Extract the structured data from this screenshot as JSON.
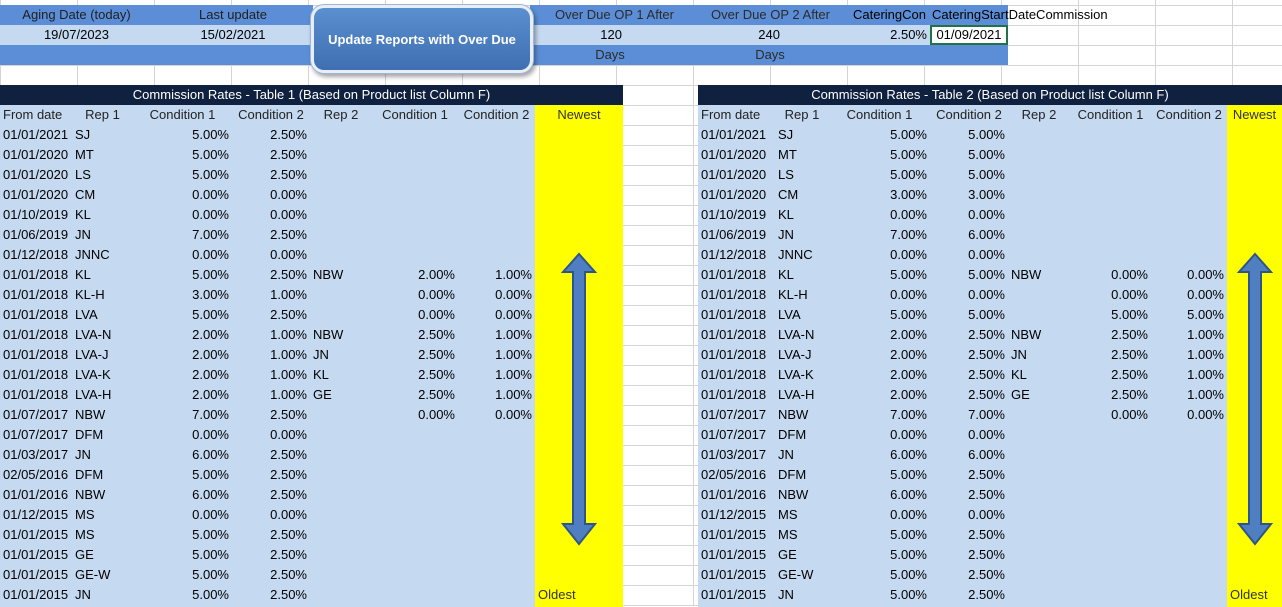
{
  "top": {
    "aging_label": "Aging Date (today)",
    "aging_value": "19/07/2023",
    "last_update_label": "Last update",
    "last_update_value": "15/02/2021",
    "button_label": "Update Reports with Over Due",
    "op1_label": "Over Due OP 1 After",
    "op1_value": "120",
    "op1_unit": "Days",
    "op2_label": "Over Due OP 2 After",
    "op2_value": "240",
    "op2_unit": "Days",
    "catering_con_label": "CateringCon",
    "catering_con_value": "2.50%",
    "catering_start_label": "CateringStartDateCommission",
    "catering_start_value": "01/09/2021"
  },
  "table1": {
    "title": "Commission Rates - Table 1 (Based on Product list Column F)",
    "headers": [
      "From date",
      "Rep 1",
      "Condition 1",
      "Condition 2",
      "Rep 2",
      "Condition 1",
      "Condition 2"
    ],
    "newest": "Newest",
    "oldest": "Oldest",
    "rows": [
      [
        "01/01/2021",
        "SJ",
        "5.00%",
        "2.50%",
        "",
        "",
        ""
      ],
      [
        "01/01/2020",
        "MT",
        "5.00%",
        "2.50%",
        "",
        "",
        ""
      ],
      [
        "01/01/2020",
        "LS",
        "5.00%",
        "2.50%",
        "",
        "",
        ""
      ],
      [
        "01/01/2020",
        "CM",
        "0.00%",
        "0.00%",
        "",
        "",
        ""
      ],
      [
        "01/10/2019",
        "KL",
        "0.00%",
        "0.00%",
        "",
        "",
        ""
      ],
      [
        "01/06/2019",
        "JN",
        "7.00%",
        "2.50%",
        "",
        "",
        ""
      ],
      [
        "01/12/2018",
        "JNNC",
        "0.00%",
        "0.00%",
        "",
        "",
        ""
      ],
      [
        "01/01/2018",
        "KL",
        "5.00%",
        "2.50%",
        "NBW",
        "2.00%",
        "1.00%"
      ],
      [
        "01/01/2018",
        "KL-H",
        "3.00%",
        "1.00%",
        "",
        "0.00%",
        "0.00%"
      ],
      [
        "01/01/2018",
        "LVA",
        "5.00%",
        "2.50%",
        "",
        "0.00%",
        "0.00%"
      ],
      [
        "01/01/2018",
        "LVA-N",
        "2.00%",
        "1.00%",
        "NBW",
        "2.50%",
        "1.00%"
      ],
      [
        "01/01/2018",
        "LVA-J",
        "2.00%",
        "1.00%",
        "JN",
        "2.50%",
        "1.00%"
      ],
      [
        "01/01/2018",
        "LVA-K",
        "2.00%",
        "1.00%",
        "KL",
        "2.50%",
        "1.00%"
      ],
      [
        "01/01/2018",
        "LVA-H",
        "2.00%",
        "1.00%",
        "GE",
        "2.50%",
        "1.00%"
      ],
      [
        "01/07/2017",
        "NBW",
        "7.00%",
        "2.50%",
        "",
        "0.00%",
        "0.00%"
      ],
      [
        "01/07/2017",
        "DFM",
        "0.00%",
        "0.00%",
        "",
        "",
        ""
      ],
      [
        "01/03/2017",
        "JN",
        "6.00%",
        "2.50%",
        "",
        "",
        ""
      ],
      [
        "02/05/2016",
        "DFM",
        "5.00%",
        "2.50%",
        "",
        "",
        ""
      ],
      [
        "01/01/2016",
        "NBW",
        "6.00%",
        "2.50%",
        "",
        "",
        ""
      ],
      [
        "01/12/2015",
        "MS",
        "0.00%",
        "0.00%",
        "",
        "",
        ""
      ],
      [
        "01/01/2015",
        "MS",
        "5.00%",
        "2.50%",
        "",
        "",
        ""
      ],
      [
        "01/01/2015",
        "GE",
        "5.00%",
        "2.50%",
        "",
        "",
        ""
      ],
      [
        "01/01/2015",
        "GE-W",
        "5.00%",
        "2.50%",
        "",
        "",
        ""
      ],
      [
        "01/01/2015",
        "JN",
        "5.00%",
        "2.50%",
        "",
        "",
        ""
      ]
    ]
  },
  "table2": {
    "title": "Commission Rates - Table 2 (Based on Product list Column F)",
    "headers": [
      "From date",
      "Rep 1",
      "Condition 1",
      "Condition 2",
      "Rep 2",
      "Condition 1",
      "Condition 2"
    ],
    "newest": "Newest",
    "oldest": "Oldest",
    "rows": [
      [
        "01/01/2021",
        "SJ",
        "5.00%",
        "5.00%",
        "",
        "",
        ""
      ],
      [
        "01/01/2020",
        "MT",
        "5.00%",
        "5.00%",
        "",
        "",
        ""
      ],
      [
        "01/01/2020",
        "LS",
        "5.00%",
        "5.00%",
        "",
        "",
        ""
      ],
      [
        "01/01/2020",
        "CM",
        "3.00%",
        "3.00%",
        "",
        "",
        ""
      ],
      [
        "01/10/2019",
        "KL",
        "0.00%",
        "0.00%",
        "",
        "",
        ""
      ],
      [
        "01/06/2019",
        "JN",
        "7.00%",
        "6.00%",
        "",
        "",
        ""
      ],
      [
        "01/12/2018",
        "JNNC",
        "0.00%",
        "0.00%",
        "",
        "",
        ""
      ],
      [
        "01/01/2018",
        "KL",
        "5.00%",
        "5.00%",
        "NBW",
        "0.00%",
        "0.00%"
      ],
      [
        "01/01/2018",
        "KL-H",
        "0.00%",
        "0.00%",
        "",
        "0.00%",
        "0.00%"
      ],
      [
        "01/01/2018",
        "LVA",
        "5.00%",
        "5.00%",
        "",
        "5.00%",
        "5.00%"
      ],
      [
        "01/01/2018",
        "LVA-N",
        "2.00%",
        "2.50%",
        "NBW",
        "2.50%",
        "1.00%"
      ],
      [
        "01/01/2018",
        "LVA-J",
        "2.00%",
        "2.50%",
        "JN",
        "2.50%",
        "1.00%"
      ],
      [
        "01/01/2018",
        "LVA-K",
        "2.00%",
        "2.50%",
        "KL",
        "2.50%",
        "1.00%"
      ],
      [
        "01/01/2018",
        "LVA-H",
        "2.00%",
        "2.50%",
        "GE",
        "2.50%",
        "1.00%"
      ],
      [
        "01/07/2017",
        "NBW",
        "7.00%",
        "7.00%",
        "",
        "0.00%",
        "0.00%"
      ],
      [
        "01/07/2017",
        "DFM",
        "0.00%",
        "0.00%",
        "",
        "",
        ""
      ],
      [
        "01/03/2017",
        "JN",
        "6.00%",
        "6.00%",
        "",
        "",
        ""
      ],
      [
        "02/05/2016",
        "DFM",
        "5.00%",
        "2.50%",
        "",
        "",
        ""
      ],
      [
        "01/01/2016",
        "NBW",
        "6.00%",
        "2.50%",
        "",
        "",
        ""
      ],
      [
        "01/12/2015",
        "MS",
        "0.00%",
        "0.00%",
        "",
        "",
        ""
      ],
      [
        "01/01/2015",
        "MS",
        "5.00%",
        "2.50%",
        "",
        "",
        ""
      ],
      [
        "01/01/2015",
        "GE",
        "5.00%",
        "2.50%",
        "",
        "",
        ""
      ],
      [
        "01/01/2015",
        "GE-W",
        "5.00%",
        "2.50%",
        "",
        "",
        ""
      ],
      [
        "01/01/2015",
        "JN",
        "5.00%",
        "2.50%",
        "",
        "",
        ""
      ]
    ]
  }
}
